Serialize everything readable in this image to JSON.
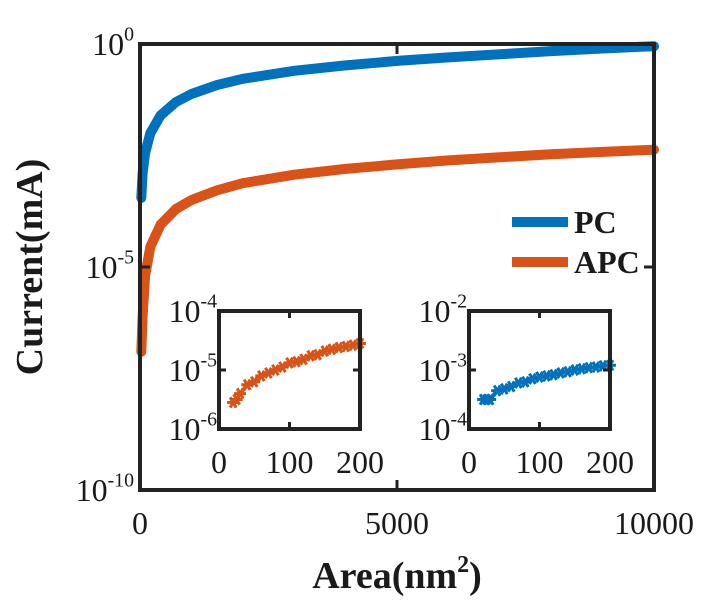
{
  "chart_data": [
    {
      "type": "line",
      "scale_y": "log",
      "xlabel": "Area(nm",
      "xlabel_sup": "2",
      "xlabel_close": ")",
      "ylabel": "Current(mA)",
      "xlim": [
        0,
        10000
      ],
      "ylim_exp": [
        -10,
        0
      ],
      "x_ticks": [
        0,
        5000,
        10000
      ],
      "x_tick_labels": [
        "0",
        "5000",
        "10000"
      ],
      "y_ticks_exp": [
        -10,
        -5,
        0
      ],
      "y_tick_labels": [
        {
          "base": "10",
          "exp": "-10"
        },
        {
          "base": "10",
          "exp": "-5"
        },
        {
          "base": "10",
          "exp": "0"
        }
      ],
      "legend_position": "right",
      "series": [
        {
          "name": "PC",
          "color": "#0072BD",
          "x": [
            25,
            50,
            100,
            200,
            400,
            700,
            1000,
            1500,
            2000,
            3000,
            4000,
            5000,
            6000,
            7000,
            8000,
            9000,
            10000
          ],
          "log10_y": [
            -3.45,
            -2.9,
            -2.45,
            -2.0,
            -1.6,
            -1.3,
            -1.12,
            -0.92,
            -0.78,
            -0.6,
            -0.48,
            -0.38,
            -0.3,
            -0.23,
            -0.16,
            -0.1,
            -0.05
          ]
        },
        {
          "name": "APC",
          "color": "#D95319",
          "x": [
            25,
            50,
            100,
            200,
            400,
            700,
            1000,
            1500,
            2000,
            3000,
            4000,
            5000,
            6000,
            7000,
            8000,
            9000,
            10000
          ],
          "log10_y": [
            -6.9,
            -6.1,
            -5.2,
            -4.55,
            -4.05,
            -3.7,
            -3.5,
            -3.28,
            -3.12,
            -2.93,
            -2.8,
            -2.7,
            -2.61,
            -2.54,
            -2.47,
            -2.42,
            -2.37
          ]
        }
      ]
    },
    {
      "type": "line",
      "scale_y": "log",
      "inset": "bottom-left",
      "xlim": [
        0,
        200
      ],
      "ylim_exp": [
        -6,
        -4
      ],
      "x_ticks": [
        0,
        100,
        200
      ],
      "x_tick_labels": [
        "0",
        "100",
        "200"
      ],
      "y_ticks_exp": [
        -6,
        -5,
        -4
      ],
      "y_tick_labels": [
        {
          "base": "10",
          "exp": "-6"
        },
        {
          "base": "10",
          "exp": "-5"
        },
        {
          "base": "10",
          "exp": "-4"
        }
      ],
      "series": [
        {
          "name": "APC",
          "color": "#D95319",
          "marker": "asterisk",
          "x": [
            20,
            25,
            30,
            40,
            50,
            60,
            70,
            80,
            90,
            100,
            110,
            120,
            130,
            140,
            150,
            160,
            170,
            180,
            190,
            200
          ],
          "log10_y": [
            -5.55,
            -5.5,
            -5.4,
            -5.25,
            -5.2,
            -5.1,
            -5.05,
            -5.0,
            -4.95,
            -4.88,
            -4.86,
            -4.82,
            -4.76,
            -4.74,
            -4.68,
            -4.65,
            -4.62,
            -4.6,
            -4.58,
            -4.55
          ]
        }
      ]
    },
    {
      "type": "line",
      "scale_y": "log",
      "inset": "bottom-right",
      "xlim": [
        0,
        200
      ],
      "ylim_exp": [
        -4,
        -2
      ],
      "x_ticks": [
        0,
        100,
        200
      ],
      "x_tick_labels": [
        "0",
        "100",
        "200"
      ],
      "y_ticks_exp": [
        -4,
        -3,
        -2
      ],
      "y_tick_labels": [
        {
          "base": "10",
          "exp": "-4"
        },
        {
          "base": "10",
          "exp": "-3"
        },
        {
          "base": "10",
          "exp": "-2"
        }
      ],
      "series": [
        {
          "name": "PC",
          "color": "#0072BD",
          "marker": "asterisk",
          "x": [
            20,
            25,
            30,
            40,
            50,
            60,
            70,
            80,
            90,
            100,
            110,
            120,
            130,
            140,
            150,
            160,
            170,
            180,
            190,
            200
          ],
          "log10_y": [
            -3.5,
            -3.5,
            -3.5,
            -3.35,
            -3.32,
            -3.28,
            -3.22,
            -3.2,
            -3.15,
            -3.12,
            -3.1,
            -3.08,
            -3.05,
            -3.03,
            -3.0,
            -2.98,
            -2.96,
            -2.95,
            -2.93,
            -2.92
          ]
        }
      ]
    }
  ]
}
